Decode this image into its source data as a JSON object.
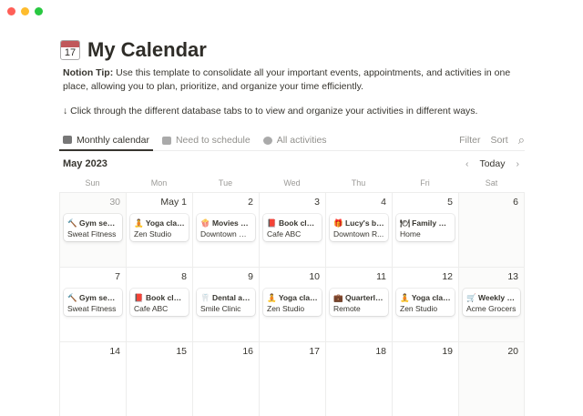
{
  "window": {
    "controls": [
      {
        "name": "close",
        "color": "#ff5f57"
      },
      {
        "name": "minimize",
        "color": "#febc2e"
      },
      {
        "name": "maximize",
        "color": "#28c840"
      }
    ]
  },
  "page": {
    "icon": "calendar-icon",
    "icon_text": "17",
    "title": "My Calendar",
    "tip_label": "Notion Tip:",
    "tip_text": " Use this template to consolidate all your important events, appointments, and activities in one place, allowing you to plan, prioritize, and organize your time efficiently.",
    "instruction": "↓ Click through the different database tabs to to view and organize your activities in different ways."
  },
  "tabs": [
    {
      "label": "Monthly calendar",
      "icon": "calendar-icon",
      "active": true
    },
    {
      "label": "Need to schedule",
      "icon": "calendar-plus-icon"
    },
    {
      "label": "All activities",
      "icon": "shapes-icon"
    }
  ],
  "toolbar": {
    "filter": "Filter",
    "sort": "Sort",
    "search_icon": "⌕"
  },
  "calendar": {
    "month": "May 2023",
    "prev": "‹",
    "today": "Today",
    "next": "›",
    "weekdays": [
      "Sun",
      "Mon",
      "Tue",
      "Wed",
      "Thu",
      "Fri",
      "Sat"
    ],
    "weeks": [
      [
        {
          "day": "30",
          "muted": true,
          "shade": true,
          "events": [
            {
              "emoji": "🔨",
              "name": "Gym sess...",
              "loc": "Sweat Fitness"
            }
          ]
        },
        {
          "day": "May 1",
          "events": [
            {
              "emoji": "🧘",
              "name": "Yoga class",
              "loc": "Zen Studio"
            }
          ]
        },
        {
          "day": "2",
          "events": [
            {
              "emoji": "🍿",
              "name": "Movies wi...",
              "loc": "Downtown Ci..."
            }
          ]
        },
        {
          "day": "3",
          "events": [
            {
              "emoji": "📕",
              "name": "Book club...",
              "loc": "Cafe ABC"
            }
          ]
        },
        {
          "day": "4",
          "events": [
            {
              "emoji": "🎁",
              "name": "Lucy's bir...",
              "loc": "Downtown R..."
            }
          ]
        },
        {
          "day": "5",
          "events": [
            {
              "emoji": "🍽",
              "name": "Family di...",
              "loc": "Home"
            }
          ]
        },
        {
          "day": "6",
          "shade": true,
          "events": []
        }
      ],
      [
        {
          "day": "7",
          "events": [
            {
              "emoji": "🔨",
              "name": "Gym sess...",
              "loc": "Sweat Fitness"
            }
          ]
        },
        {
          "day": "8",
          "events": [
            {
              "emoji": "📕",
              "name": "Book club...",
              "loc": "Cafe ABC"
            }
          ]
        },
        {
          "day": "9",
          "events": [
            {
              "emoji": "🦷",
              "name": "Dental ap...",
              "loc": "Smile Clinic"
            }
          ]
        },
        {
          "day": "10",
          "events": [
            {
              "emoji": "🧘",
              "name": "Yoga class",
              "loc": "Zen Studio"
            }
          ]
        },
        {
          "day": "11",
          "events": [
            {
              "emoji": "💼",
              "name": "Quarterly...",
              "loc": "Remote"
            }
          ]
        },
        {
          "day": "12",
          "events": [
            {
              "emoji": "🧘",
              "name": "Yoga class",
              "loc": "Zen Studio"
            }
          ]
        },
        {
          "day": "13",
          "shade": true,
          "events": [
            {
              "emoji": "🛒",
              "name": "Weekly gr...",
              "loc": "Acme Grocers"
            }
          ]
        }
      ],
      [
        {
          "day": "14",
          "events": []
        },
        {
          "day": "15",
          "events": []
        },
        {
          "day": "16",
          "events": []
        },
        {
          "day": "17",
          "events": []
        },
        {
          "day": "18",
          "events": []
        },
        {
          "day": "19",
          "events": []
        },
        {
          "day": "20",
          "shade": true,
          "events": []
        }
      ]
    ]
  }
}
